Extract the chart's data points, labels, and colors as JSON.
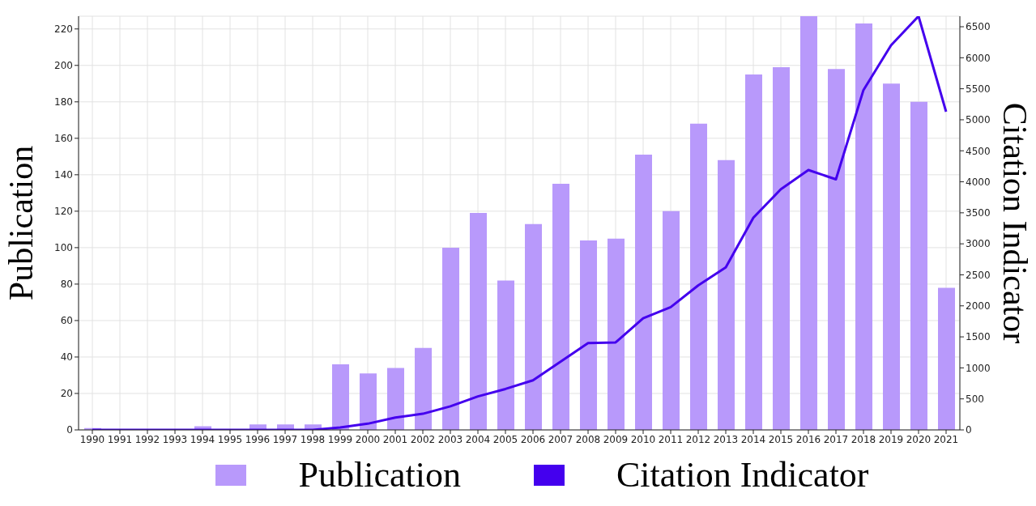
{
  "chart_data": {
    "type": "bar",
    "ylabel": "Publication",
    "y2label": "Citation Indicator",
    "categories": [
      "1990",
      "1991",
      "1992",
      "1993",
      "1994",
      "1995",
      "1996",
      "1997",
      "1998",
      "1999",
      "2000",
      "2001",
      "2002",
      "2003",
      "2004",
      "2005",
      "2006",
      "2007",
      "2008",
      "2009",
      "2010",
      "2011",
      "2012",
      "2013",
      "2014",
      "2015",
      "2016",
      "2017",
      "2018",
      "2019",
      "2020",
      "2021"
    ],
    "series": [
      {
        "name": "Publication",
        "color": "#b899fb",
        "values": [
          1,
          0,
          0,
          0,
          2,
          0,
          3,
          3,
          3,
          36,
          31,
          34,
          45,
          100,
          119,
          82,
          113,
          135,
          104,
          105,
          151,
          120,
          168,
          148,
          195,
          199,
          227,
          198,
          223,
          190,
          180,
          78
        ]
      },
      {
        "name": "Citation Indicator",
        "type": "line",
        "axis": "y2",
        "color": "#4400ee",
        "values": [
          0,
          0,
          0,
          0,
          0,
          0,
          0,
          0,
          0,
          40,
          100,
          200,
          260,
          380,
          540,
          660,
          800,
          1100,
          1400,
          1410,
          1800,
          1980,
          2330,
          2620,
          3420,
          3880,
          4190,
          4040,
          5480,
          6200,
          6670,
          5130
        ]
      }
    ],
    "ylim": [
      0,
      227
    ],
    "yticks": [
      0,
      20,
      40,
      60,
      80,
      100,
      120,
      140,
      160,
      180,
      200,
      220
    ],
    "y2lim": [
      0,
      6670
    ],
    "y2ticks": [
      0,
      500,
      1000,
      1500,
      2000,
      2500,
      3000,
      3500,
      4000,
      4500,
      5000,
      5500,
      6000,
      6500
    ],
    "grid": true,
    "legend": "bottom",
    "marker": "none",
    "line_style": "solid"
  }
}
